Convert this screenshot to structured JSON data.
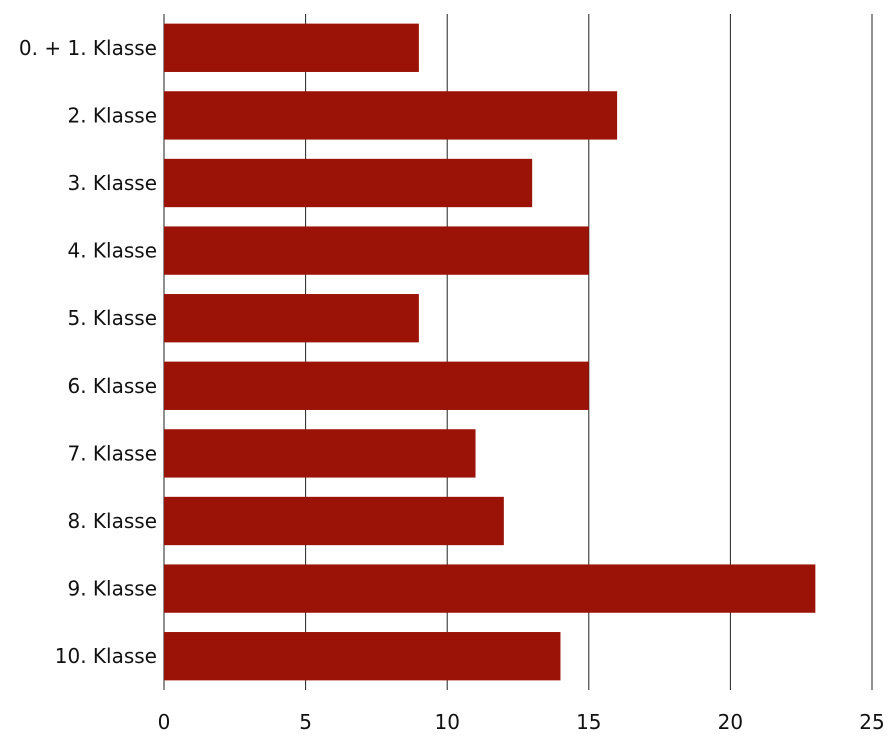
{
  "chart_data": {
    "type": "bar",
    "orientation": "horizontal",
    "categories": [
      "0. + 1.  Klasse",
      "2. Klasse",
      "3. Klasse",
      "4. Klasse",
      "5. Klasse",
      "6. Klasse",
      "7. Klasse",
      "8. Klasse",
      "9. Klasse",
      "10. Klasse"
    ],
    "values": [
      9,
      16,
      13,
      15,
      9,
      15,
      11,
      12,
      23,
      14
    ],
    "xlim": [
      0,
      25
    ],
    "xticks": [
      "0",
      "5",
      "10",
      "15",
      "20",
      "25"
    ],
    "grid": "vertical",
    "bar_color": "#9b1306",
    "title": "",
    "xlabel": "",
    "ylabel": ""
  }
}
